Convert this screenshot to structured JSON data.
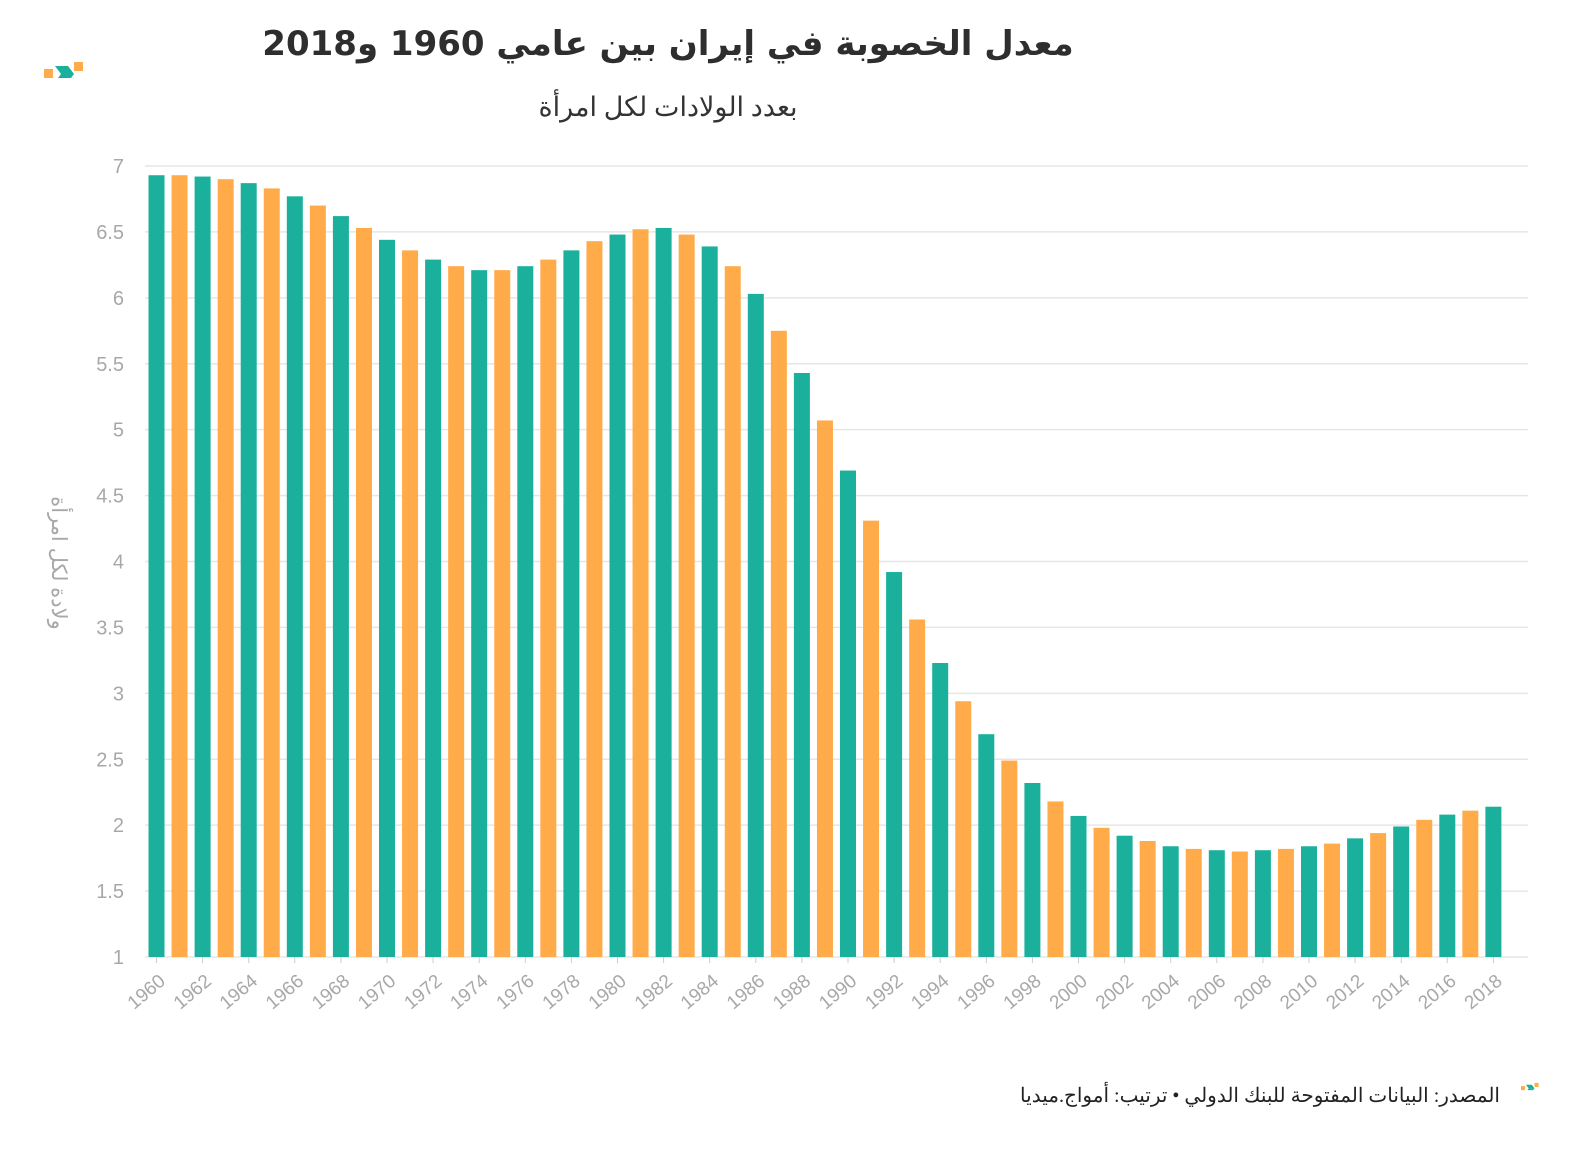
{
  "header": {
    "title": "معدل الخصوبة في إيران بين عامي 1960 و2018",
    "subtitle": "بعدد الولادات لكل امرأة"
  },
  "footer": {
    "source": "المصدر: البيانات المفتوحة للبنك الدولي • ترتيب: أمواج.ميديا"
  },
  "logo_icon": "amwaj-logo-icon",
  "colors": {
    "teal": "#1bb09c",
    "orange": "#ffab4a",
    "grid": "#e6e6e6",
    "tick": "#a8a8a8"
  },
  "chart_data": {
    "type": "bar",
    "title": "معدل الخصوبة في إيران بين عامي 1960 و2018",
    "subtitle": "بعدد الولادات لكل امرأة",
    "ylabel": "ولادة لكل امرأة",
    "xlabel": "",
    "ylim": [
      1,
      7
    ],
    "yticks": [
      1,
      1.5,
      2,
      2.5,
      3,
      3.5,
      4,
      4.5,
      5,
      5.5,
      6,
      6.5,
      7
    ],
    "grid": true,
    "bar_colors": "alternating teal (even years) / orange (odd years)",
    "x_tick_labels": [
      "1960",
      "1962",
      "1964",
      "1966",
      "1968",
      "1970",
      "1972",
      "1974",
      "1976",
      "1978",
      "1980",
      "1982",
      "1984",
      "1986",
      "1988",
      "1990",
      "1992",
      "1994",
      "1996",
      "1998",
      "2000",
      "2002",
      "2004",
      "2006",
      "2008",
      "2010",
      "2012",
      "2014",
      "2016",
      "2018"
    ],
    "categories": [
      "1960",
      "1961",
      "1962",
      "1963",
      "1964",
      "1965",
      "1966",
      "1967",
      "1968",
      "1969",
      "1970",
      "1971",
      "1972",
      "1973",
      "1974",
      "1975",
      "1976",
      "1977",
      "1978",
      "1979",
      "1980",
      "1981",
      "1982",
      "1983",
      "1984",
      "1985",
      "1986",
      "1987",
      "1988",
      "1989",
      "1990",
      "1991",
      "1992",
      "1993",
      "1994",
      "1995",
      "1996",
      "1997",
      "1998",
      "1999",
      "2000",
      "2001",
      "2002",
      "2003",
      "2004",
      "2005",
      "2006",
      "2007",
      "2008",
      "2009",
      "2010",
      "2011",
      "2012",
      "2013",
      "2014",
      "2015",
      "2016",
      "2017",
      "2018"
    ],
    "values": [
      6.93,
      6.93,
      6.92,
      6.9,
      6.87,
      6.83,
      6.77,
      6.7,
      6.62,
      6.53,
      6.44,
      6.36,
      6.29,
      6.24,
      6.21,
      6.21,
      6.24,
      6.29,
      6.36,
      6.43,
      6.48,
      6.52,
      6.53,
      6.48,
      6.39,
      6.24,
      6.03,
      5.75,
      5.43,
      5.07,
      4.69,
      4.31,
      3.92,
      3.56,
      3.23,
      2.94,
      2.69,
      2.49,
      2.32,
      2.18,
      2.07,
      1.98,
      1.92,
      1.88,
      1.84,
      1.82,
      1.81,
      1.8,
      1.81,
      1.82,
      1.84,
      1.86,
      1.9,
      1.94,
      1.99,
      2.04,
      2.08,
      2.11,
      2.14
    ]
  }
}
